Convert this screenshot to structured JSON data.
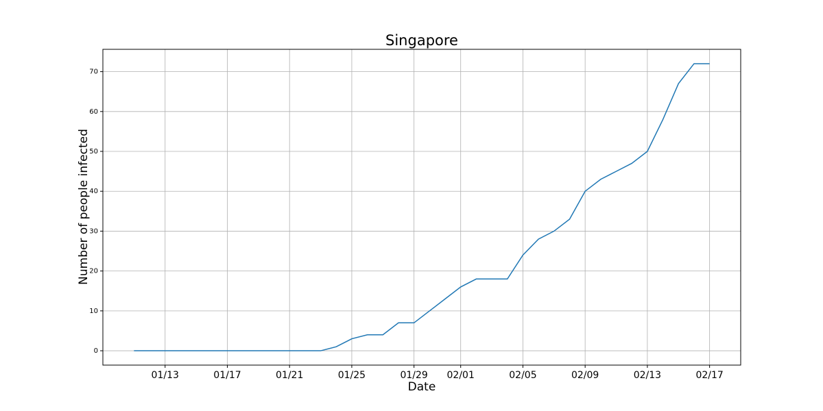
{
  "chart_data": {
    "type": "line",
    "title": "Singapore",
    "x_label": "Date",
    "y_label": "Number of people infected",
    "x": [
      "01/11",
      "01/12",
      "01/13",
      "01/14",
      "01/15",
      "01/16",
      "01/17",
      "01/18",
      "01/19",
      "01/20",
      "01/21",
      "01/22",
      "01/23",
      "01/24",
      "01/25",
      "01/26",
      "01/27",
      "01/28",
      "01/29",
      "01/30",
      "01/31",
      "02/01",
      "02/02",
      "02/03",
      "02/04",
      "02/05",
      "02/06",
      "02/07",
      "02/08",
      "02/09",
      "02/10",
      "02/11",
      "02/12",
      "02/13",
      "02/14",
      "02/15",
      "02/16",
      "02/17"
    ],
    "series": [
      {
        "color": "#1f77b4",
        "values": [
          0,
          0,
          0,
          0,
          0,
          0,
          0,
          0,
          0,
          0,
          0,
          0,
          0,
          1,
          3,
          4,
          4,
          7,
          7,
          10,
          13,
          16,
          18,
          18,
          18,
          24,
          28,
          30,
          33,
          40,
          43,
          45,
          47,
          50,
          58,
          67,
          72,
          72
        ]
      }
    ],
    "xlim": [
      "01/09",
      "02/19"
    ],
    "xticks": [
      "01/13",
      "01/17",
      "01/21",
      "01/25",
      "01/29",
      "02/01",
      "02/05",
      "02/09",
      "02/13",
      "02/17"
    ],
    "ylim": [
      -3.6,
      75.6
    ],
    "yticks": [
      0,
      10,
      20,
      30,
      40,
      50,
      60,
      70
    ],
    "grid": true
  }
}
